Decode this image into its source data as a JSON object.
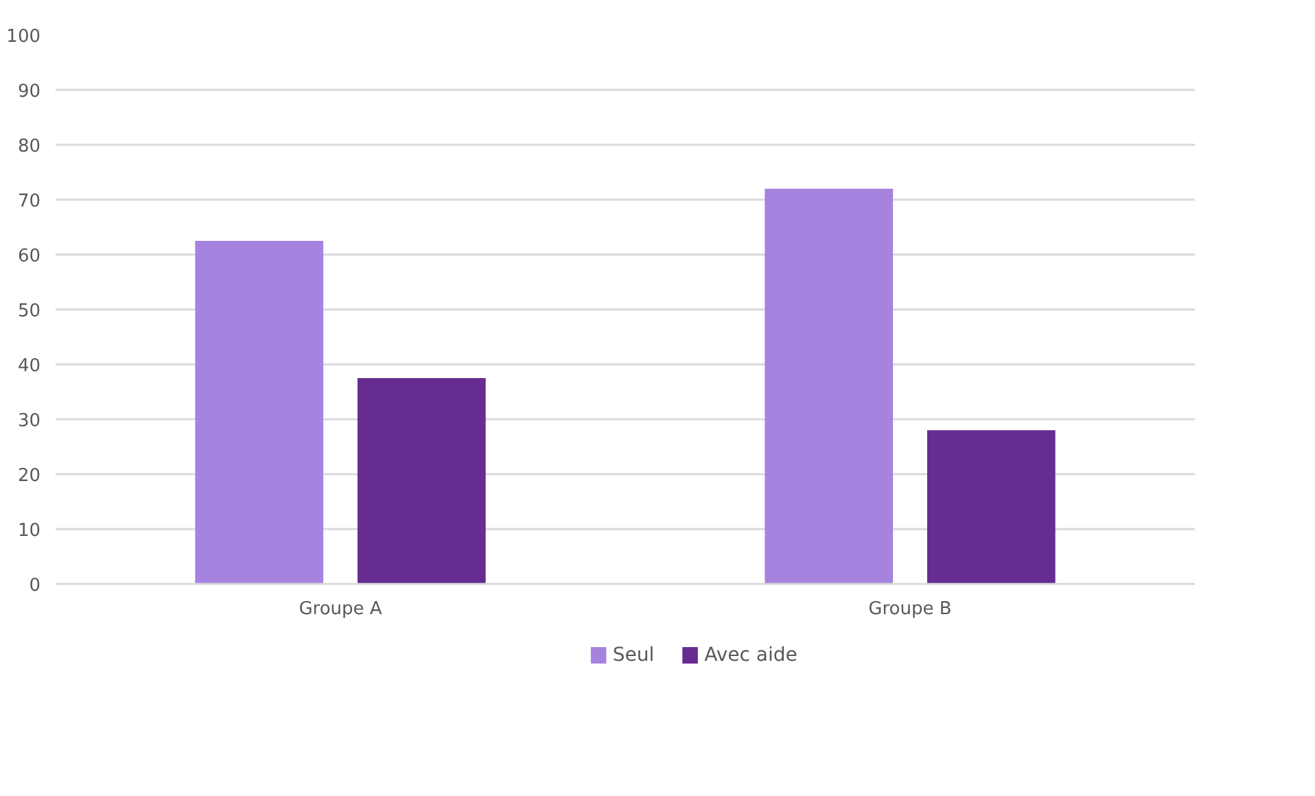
{
  "chart_data": {
    "type": "bar",
    "categories": [
      "Groupe A",
      "Groupe B"
    ],
    "series": [
      {
        "name": "Seul",
        "color": "#a683df",
        "values": [
          62.5,
          72
        ]
      },
      {
        "name": "Avec aide",
        "color": "#662c91",
        "values": [
          37.5,
          28
        ]
      }
    ],
    "ylim": [
      0,
      100
    ],
    "yticks": [
      0,
      10,
      20,
      30,
      40,
      50,
      60,
      70,
      80,
      90,
      100
    ],
    "grid": "y",
    "legend": "bottom"
  }
}
